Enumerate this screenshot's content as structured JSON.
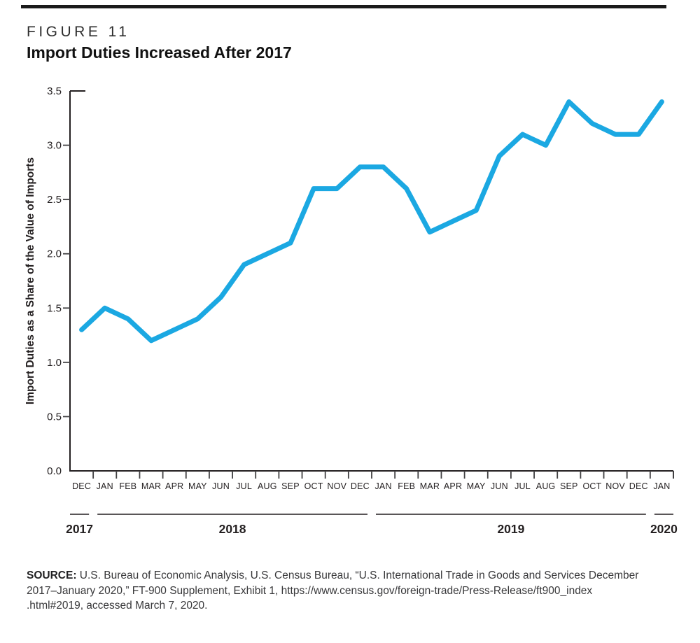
{
  "header": {
    "figure_label": "FIGURE 11",
    "title": "Import Duties Increased After 2017"
  },
  "chart_data": {
    "type": "line",
    "title": "Import Duties Increased After 2017",
    "figure_label": "FIGURE 11",
    "ylabel": "Import Duties as a Share of the Value of Imports",
    "xlabel": "",
    "ylim": [
      0,
      3.5
    ],
    "ytick_labels": [
      "3.5",
      "3.0",
      "2.5",
      "2.0",
      "1.5",
      "1.0",
      "0.5",
      "0.0"
    ],
    "ytick_values": [
      3.5,
      3.0,
      2.5,
      2.0,
      1.5,
      1.0,
      0.5,
      0.0
    ],
    "grid": false,
    "legend": "none",
    "line_color": "#1ba8e2",
    "axis_color": "#231f20",
    "tick_color": "#414042",
    "x_labels": [
      "DEC",
      "JAN",
      "FEB",
      "MAR",
      "APR",
      "MAY",
      "JUN",
      "JUL",
      "AUG",
      "SEP",
      "OCT",
      "NOV",
      "DEC",
      "JAN",
      "FEB",
      "MAR",
      "APR",
      "MAY",
      "JUN",
      "JUL",
      "AUG",
      "SEP",
      "OCT",
      "NOV",
      "DEC",
      "JAN"
    ],
    "values": [
      1.3,
      1.5,
      1.4,
      1.2,
      1.3,
      1.4,
      1.6,
      1.9,
      2.0,
      2.1,
      2.6,
      2.6,
      2.8,
      2.8,
      2.6,
      2.2,
      2.3,
      2.4,
      2.9,
      3.1,
      3.0,
      3.4,
      3.2,
      3.1,
      3.1,
      3.4
    ],
    "year_groups": [
      {
        "label": "2017",
        "from": 0,
        "to": 0
      },
      {
        "label": "2018",
        "from": 1,
        "to": 12
      },
      {
        "label": "2019",
        "from": 13,
        "to": 24
      },
      {
        "label": "2020",
        "from": 25,
        "to": 25
      }
    ]
  },
  "source": {
    "label": "SOURCE:",
    "lines": [
      "U.S. Bureau of Economic Analysis, U.S. Census Bureau, “U.S. International Trade in Goods and Services December",
      "2017–January 2020,” FT-900 Supplement, Exhibit 1, https://www.census.gov/foreign-trade/Press-Release/ft900_index",
      ".html#2019, accessed March 7, 2020."
    ]
  }
}
